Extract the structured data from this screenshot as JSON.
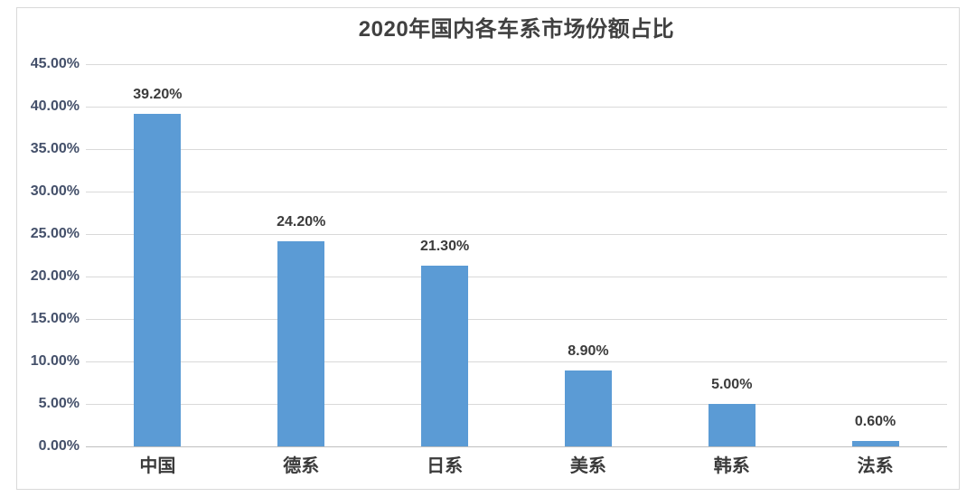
{
  "chart_data": {
    "type": "bar",
    "title": "2020年国内各车系市场份额占比",
    "categories": [
      "中国",
      "德系",
      "日系",
      "美系",
      "韩系",
      "法系"
    ],
    "values": [
      39.2,
      24.2,
      21.3,
      8.9,
      5.0,
      0.6
    ],
    "value_labels": [
      "39.20%",
      "24.20%",
      "21.30%",
      "8.90%",
      "5.00%",
      "0.60%"
    ],
    "y_tick_labels": [
      "0.00%",
      "5.00%",
      "10.00%",
      "15.00%",
      "20.00%",
      "25.00%",
      "30.00%",
      "35.00%",
      "40.00%",
      "45.00%"
    ],
    "y_tick_values": [
      0,
      5,
      10,
      15,
      20,
      25,
      30,
      35,
      40,
      45
    ],
    "ylim": [
      0,
      45
    ],
    "xlabel": "",
    "ylabel": "",
    "grid": true,
    "legend": false,
    "colors": {
      "bar": "#5B9BD5",
      "gridline": "#d9d9d9",
      "axis_line": "#bfbfbf",
      "title_text": "#404040",
      "tick_text": "#44506a",
      "label_text": "#3b3b3b",
      "frame_border": "#d9d9d9",
      "background": "#ffffff"
    }
  }
}
